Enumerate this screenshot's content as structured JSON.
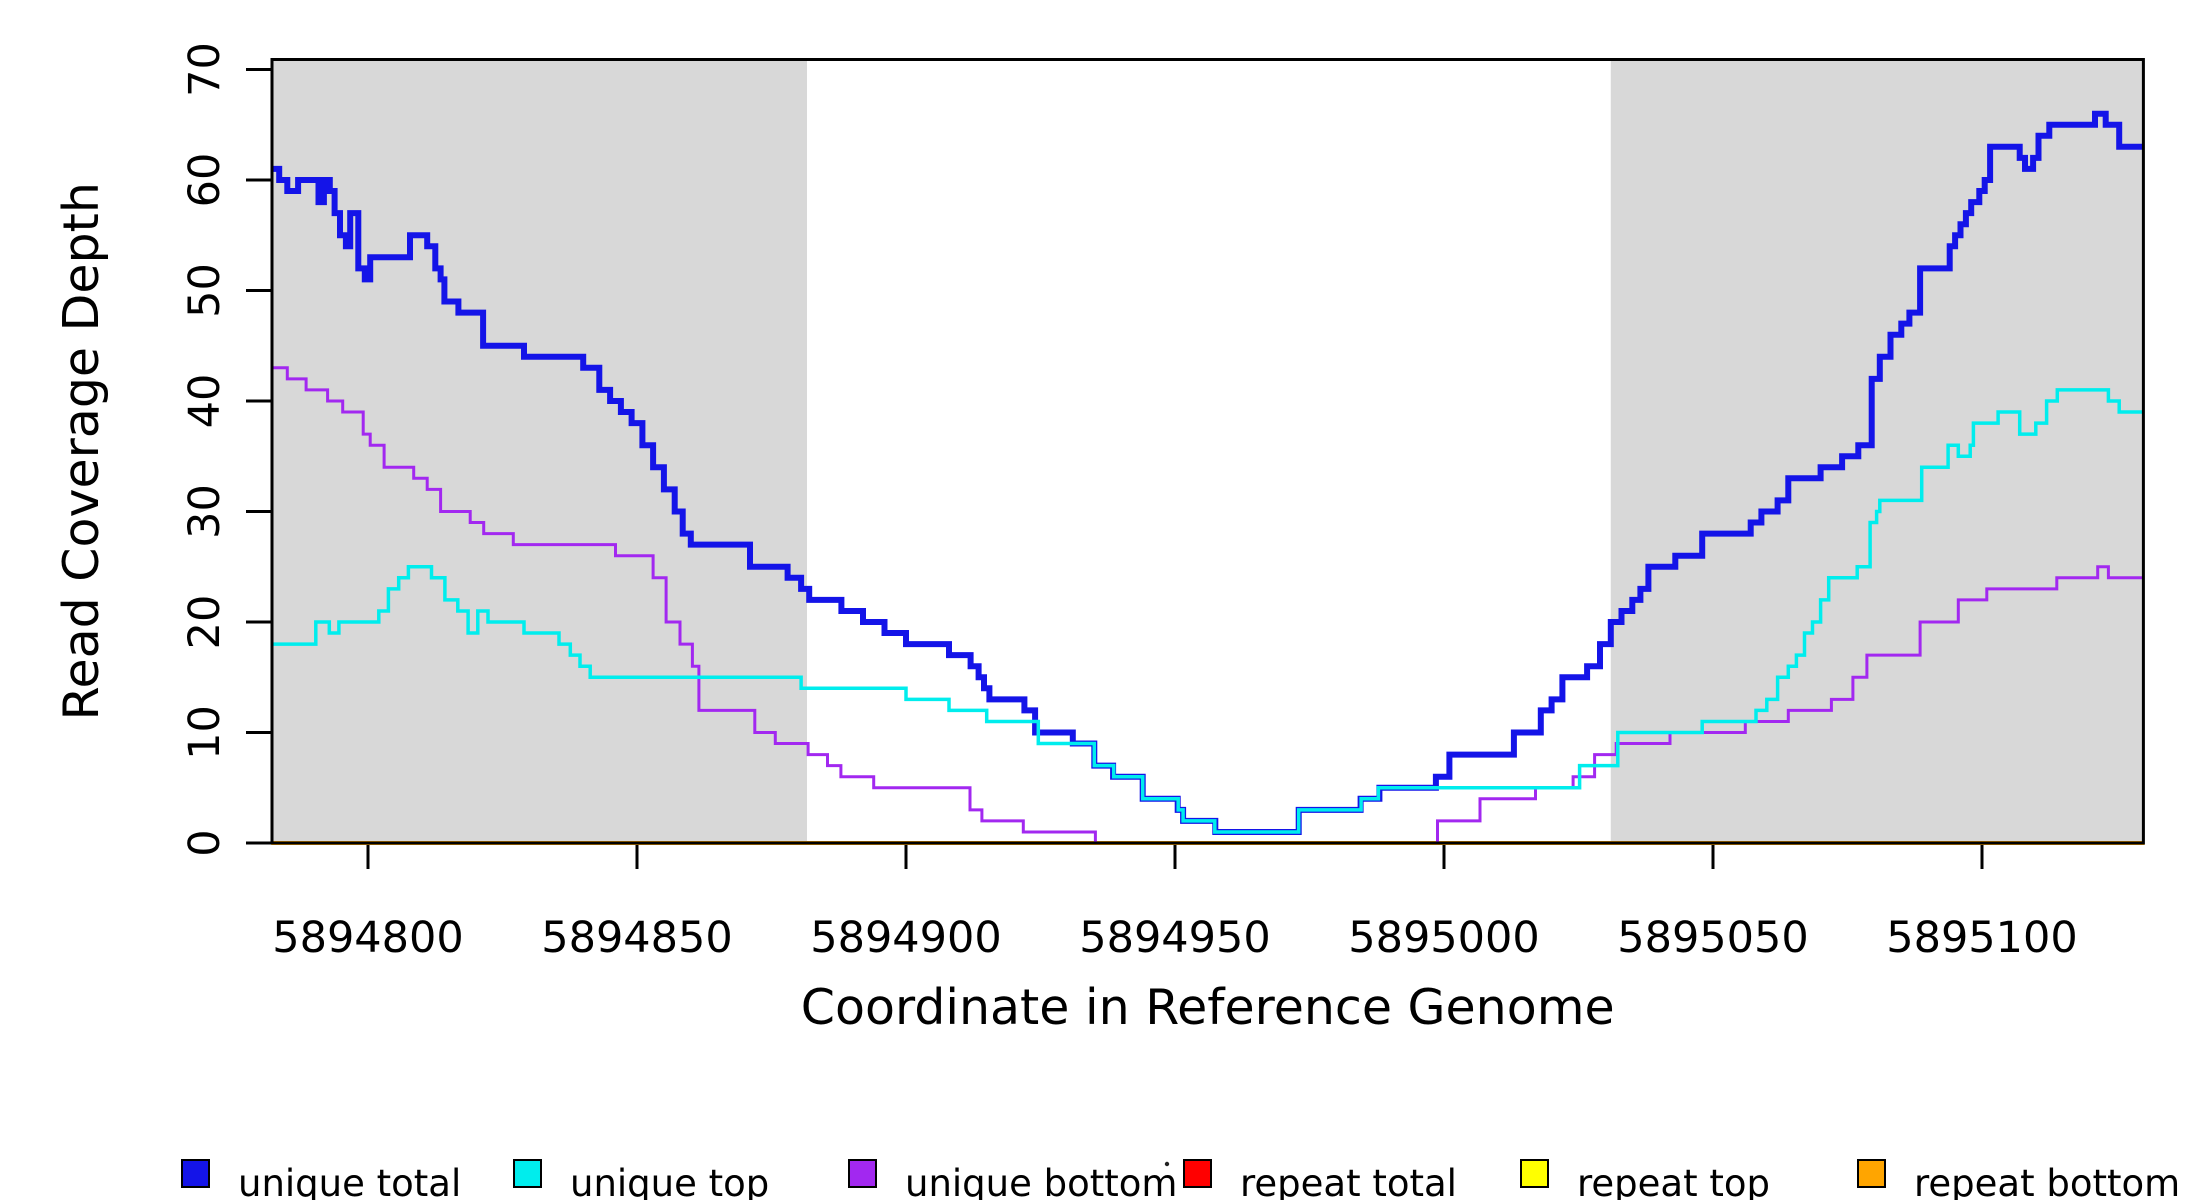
{
  "chart_data": {
    "type": "line",
    "subtype": "step-coverage-plot",
    "title": "",
    "xlabel": "Coordinate in Reference Genome",
    "ylabel": "Read Coverage Depth",
    "xlim": [
      5894782,
      5895130.2
    ],
    "ylim": [
      0,
      70.9
    ],
    "xticks": [
      5894800,
      5894850,
      5894900,
      5894950,
      5895000,
      5895050,
      5895100
    ],
    "yticks": [
      0,
      10,
      20,
      30,
      40,
      50,
      60,
      70
    ],
    "grid": false,
    "legend_position": "bottom",
    "background_color": "#ffffff",
    "shaded_region_color": "#d8d8d8",
    "shaded_regions": [
      {
        "from": 5894782,
        "to": 5894881.6
      },
      {
        "from": 5895031,
        "to": 5895130.2
      }
    ],
    "series": [
      {
        "name": "repeat total",
        "color": "#ff0000",
        "width": 3,
        "steps": [
          [
            5894782,
            0
          ]
        ]
      },
      {
        "name": "repeat top",
        "color": "#ffff00",
        "width": 3,
        "steps": [
          [
            5894782,
            0
          ]
        ]
      },
      {
        "name": "repeat bottom",
        "color": "#ffa500",
        "width": 4,
        "steps": [
          [
            5894782,
            0
          ]
        ]
      },
      {
        "name": "unique bottom",
        "color": "#a228f0",
        "width": 3,
        "steps": [
          [
            5894782,
            43
          ],
          [
            5894785,
            42
          ],
          [
            5894788.5,
            41
          ],
          [
            5894792.5,
            40
          ],
          [
            5894795.3,
            39
          ],
          [
            5894799.1,
            37
          ],
          [
            5894800.4,
            36
          ],
          [
            5894803,
            34
          ],
          [
            5894808.5,
            33
          ],
          [
            5894811,
            32
          ],
          [
            5894813.5,
            30
          ],
          [
            5894819,
            29
          ],
          [
            5894821.5,
            28
          ],
          [
            5894827,
            27
          ],
          [
            5894846,
            26
          ],
          [
            5894853,
            24
          ],
          [
            5894855.4,
            20
          ],
          [
            5894858,
            18
          ],
          [
            5894860.3,
            16
          ],
          [
            5894861.5,
            12
          ],
          [
            5894871.9,
            10
          ],
          [
            5894875.7,
            9
          ],
          [
            5894881.8,
            8
          ],
          [
            5894885.4,
            7
          ],
          [
            5894887.9,
            6
          ],
          [
            5894894,
            5
          ],
          [
            5894911.9,
            3
          ],
          [
            5894914.1,
            2
          ],
          [
            5894921.8,
            1
          ],
          [
            5894935.2,
            0
          ],
          [
            5894998.8,
            2
          ],
          [
            5895006.7,
            4
          ],
          [
            5895017,
            5
          ],
          [
            5895024,
            6
          ],
          [
            5895028,
            8
          ],
          [
            5895032,
            9
          ],
          [
            5895042,
            10
          ],
          [
            5895056,
            11
          ],
          [
            5895064,
            12
          ],
          [
            5895072,
            13
          ],
          [
            5895076,
            15
          ],
          [
            5895078.6,
            17
          ],
          [
            5895088.5,
            20
          ],
          [
            5895095.6,
            22
          ],
          [
            5895100.9,
            23
          ],
          [
            5895113.9,
            24
          ],
          [
            5895121.5,
            25
          ],
          [
            5895123.5,
            24
          ]
        ]
      },
      {
        "name": "unique total",
        "color": "#1414e8",
        "width": 6,
        "steps": [
          [
            5894782,
            61
          ],
          [
            5894783.5,
            60
          ],
          [
            5894785,
            59
          ],
          [
            5894787,
            60
          ],
          [
            5894790.8,
            58
          ],
          [
            5894791.8,
            60
          ],
          [
            5894792.9,
            59
          ],
          [
            5894793.8,
            57
          ],
          [
            5894794.8,
            55
          ],
          [
            5894795.9,
            54
          ],
          [
            5894796.7,
            57
          ],
          [
            5894798.2,
            52
          ],
          [
            5894799.4,
            51
          ],
          [
            5894800.4,
            53
          ],
          [
            5894807.8,
            55
          ],
          [
            5894811,
            54
          ],
          [
            5894812.5,
            52
          ],
          [
            5894813.5,
            51
          ],
          [
            5894814.2,
            49
          ],
          [
            5894816.8,
            48
          ],
          [
            5894821.4,
            45
          ],
          [
            5894829,
            44
          ],
          [
            5894840,
            43
          ],
          [
            5894843,
            41
          ],
          [
            5894845,
            40
          ],
          [
            5894847,
            39
          ],
          [
            5894849,
            38
          ],
          [
            5894851,
            36
          ],
          [
            5894853,
            34
          ],
          [
            5894855,
            32
          ],
          [
            5894857,
            30
          ],
          [
            5894858.5,
            28
          ],
          [
            5894860,
            27
          ],
          [
            5894871,
            25
          ],
          [
            5894878,
            24
          ],
          [
            5894880.5,
            23
          ],
          [
            5894882,
            22
          ],
          [
            5894888,
            21
          ],
          [
            5894892,
            20
          ],
          [
            5894896,
            19
          ],
          [
            5894900,
            18
          ],
          [
            5894908,
            17
          ],
          [
            5894912,
            16
          ],
          [
            5894913.5,
            15
          ],
          [
            5894914.5,
            14
          ],
          [
            5894915.5,
            13
          ],
          [
            5894922,
            12
          ],
          [
            5894924,
            10
          ],
          [
            5894931,
            9
          ],
          [
            5894935,
            7
          ],
          [
            5894938.5,
            6
          ],
          [
            5894944,
            4
          ],
          [
            5894950.5,
            3
          ],
          [
            5894951.5,
            2
          ],
          [
            5894957.5,
            1
          ],
          [
            5894973,
            3
          ],
          [
            5894984.5,
            4
          ],
          [
            5894988,
            5
          ],
          [
            5894998.5,
            6
          ],
          [
            5895001,
            8
          ],
          [
            5895013,
            10
          ],
          [
            5895018,
            12
          ],
          [
            5895020,
            13
          ],
          [
            5895022,
            15
          ],
          [
            5895026.6,
            16
          ],
          [
            5895029,
            18
          ],
          [
            5895031,
            20
          ],
          [
            5895033,
            21
          ],
          [
            5895035,
            22
          ],
          [
            5895036.5,
            23
          ],
          [
            5895038,
            25
          ],
          [
            5895043,
            26
          ],
          [
            5895048,
            28
          ],
          [
            5895057,
            29
          ],
          [
            5895059,
            30
          ],
          [
            5895062,
            31
          ],
          [
            5895064,
            33
          ],
          [
            5895070,
            34
          ],
          [
            5895074,
            35
          ],
          [
            5895077,
            36
          ],
          [
            5895079.5,
            42
          ],
          [
            5895081,
            44
          ],
          [
            5895083,
            46
          ],
          [
            5895085,
            47
          ],
          [
            5895086.5,
            48
          ],
          [
            5895088.5,
            52
          ],
          [
            5895094,
            54
          ],
          [
            5895095,
            55
          ],
          [
            5895096,
            56
          ],
          [
            5895097,
            57
          ],
          [
            5895098,
            58
          ],
          [
            5895099.5,
            59
          ],
          [
            5895100.5,
            60
          ],
          [
            5895101.5,
            63
          ],
          [
            5895107,
            62
          ],
          [
            5895108,
            61
          ],
          [
            5895109.5,
            62
          ],
          [
            5895110.5,
            64
          ],
          [
            5895112.5,
            65
          ],
          [
            5895121,
            66
          ],
          [
            5895123,
            65
          ],
          [
            5895125.5,
            63
          ]
        ]
      },
      {
        "name": "unique top",
        "color": "#00eded",
        "width": 3.5,
        "steps": [
          [
            5894782,
            18
          ],
          [
            5894790.3,
            20
          ],
          [
            5894792.8,
            19
          ],
          [
            5894794.6,
            20
          ],
          [
            5894802,
            21
          ],
          [
            5894803.8,
            23
          ],
          [
            5894805.7,
            24
          ],
          [
            5894807.5,
            25
          ],
          [
            5894811.8,
            24
          ],
          [
            5894814.3,
            22
          ],
          [
            5894816.7,
            21
          ],
          [
            5894818.6,
            19
          ],
          [
            5894820.4,
            21
          ],
          [
            5894822.3,
            20
          ],
          [
            5894829,
            19
          ],
          [
            5894835.5,
            18
          ],
          [
            5894837.6,
            17
          ],
          [
            5894839.4,
            16
          ],
          [
            5894841.3,
            15
          ],
          [
            5894880.5,
            14
          ],
          [
            5894900,
            13
          ],
          [
            5894908,
            12
          ],
          [
            5894915,
            11
          ],
          [
            5894924.6,
            9
          ],
          [
            5894935,
            7
          ],
          [
            5894938.6,
            6
          ],
          [
            5894944,
            4
          ],
          [
            5894950.6,
            3
          ],
          [
            5894951.5,
            2
          ],
          [
            5894957.4,
            1
          ],
          [
            5894973,
            3
          ],
          [
            5894984.6,
            4
          ],
          [
            5894987.8,
            5
          ],
          [
            5895025.2,
            7
          ],
          [
            5895032.3,
            10
          ],
          [
            5895048,
            11
          ],
          [
            5895058,
            12
          ],
          [
            5895060,
            13
          ],
          [
            5895062,
            15
          ],
          [
            5895064,
            16
          ],
          [
            5895065.5,
            17
          ],
          [
            5895067,
            19
          ],
          [
            5895068.5,
            20
          ],
          [
            5895070,
            22
          ],
          [
            5895071.5,
            24
          ],
          [
            5895076.8,
            25
          ],
          [
            5895079.2,
            29
          ],
          [
            5895080.4,
            30
          ],
          [
            5895081,
            31
          ],
          [
            5895088.8,
            34
          ],
          [
            5895093.7,
            36
          ],
          [
            5895095.6,
            35
          ],
          [
            5895097.8,
            36
          ],
          [
            5895098.4,
            38
          ],
          [
            5895103,
            39
          ],
          [
            5895107,
            37
          ],
          [
            5895110,
            38
          ],
          [
            5895112,
            40
          ],
          [
            5895114,
            41
          ],
          [
            5895123.5,
            40
          ],
          [
            5895125.5,
            39
          ]
        ]
      }
    ]
  },
  "legend": {
    "entries": [
      {
        "label": "unique total",
        "color": "#1414e8"
      },
      {
        "label": "unique top",
        "color": "#00eded"
      },
      {
        "label": "unique bottom",
        "color": "#a228f0"
      },
      {
        "label": "repeat total",
        "color": "#ff0000"
      },
      {
        "label": "repeat top",
        "color": "#ffff00"
      },
      {
        "label": "repeat bottom",
        "color": "#ffa500"
      }
    ]
  }
}
